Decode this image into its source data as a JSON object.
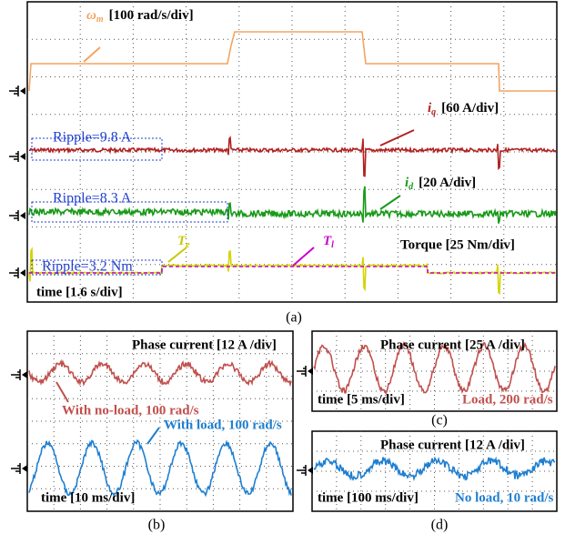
{
  "panel_a": {
    "caption": "(a)",
    "speed_label": "ω",
    "speed_sub": "m",
    "speed_scale": "[100 rad/s/div]",
    "iq_label": "i",
    "iq_sub": "q",
    "iq_scale": "[60 A/div]",
    "iq_ripple": "Ripple=9.8 A",
    "id_label": "i",
    "id_sub": "d",
    "id_scale": "[20 A/div]",
    "id_ripple": "Ripple=8.3 A",
    "te_label": "T",
    "te_sub": "e",
    "tl_label": "T",
    "tl_sub": "l",
    "torque_scale": "Torque [25 Nm/div]",
    "torque_ripple": "Ripple=3.2 Nm",
    "time_scale": "time [1.6 s/div]"
  },
  "panel_b": {
    "caption": "(b)",
    "scale": "Phase current [12 A /div]",
    "trace1": "With no-load, 100 rad/s",
    "trace2": "With load, 100 rad/s",
    "time_scale": "time [10 ms/div]"
  },
  "panel_c": {
    "caption": "(c)",
    "scale": "Phase current [25 A /div]",
    "time_scale": "time [5 ms/div]",
    "trace": "Load, 200 rad/s"
  },
  "panel_d": {
    "caption": "(d)",
    "scale": "Phase current [12 A /div]",
    "time_scale": "time [100 ms/div]",
    "trace": "No load, 10 rad/s"
  }
}
